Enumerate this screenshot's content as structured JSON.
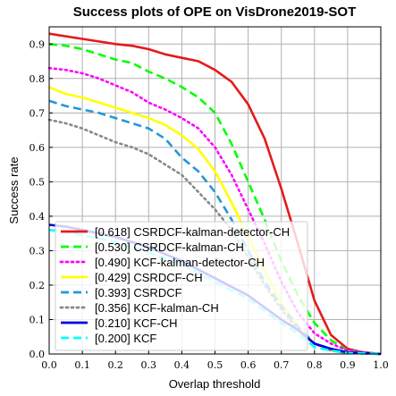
{
  "chart_data": {
    "type": "line",
    "title": "Success plots of OPE on VisDrone2019-SOT",
    "xlabel": "Overlap threshold",
    "ylabel": "Success rate",
    "xlim": [
      0,
      1
    ],
    "ylim": [
      0,
      0.95
    ],
    "xticks": [
      "0.0",
      "0.1",
      "0.2",
      "0.3",
      "0.4",
      "0.5",
      "0.6",
      "0.7",
      "0.8",
      "0.9",
      "1.0"
    ],
    "yticks": [
      "0.0",
      "0.1",
      "0.2",
      "0.3",
      "0.4",
      "0.5",
      "0.6",
      "0.7",
      "0.8",
      "0.9"
    ],
    "grid": true,
    "legend_position": "lower-left",
    "series": [
      {
        "name": "[0.618] CSRDCF-kalman-detector-CH",
        "color": "#e41a1c",
        "dash": "solid",
        "x": [
          0,
          0.1,
          0.2,
          0.25,
          0.3,
          0.35,
          0.4,
          0.45,
          0.5,
          0.55,
          0.6,
          0.65,
          0.7,
          0.75,
          0.8,
          0.85,
          0.9,
          0.95,
          1.0
        ],
        "y": [
          0.93,
          0.915,
          0.9,
          0.895,
          0.885,
          0.87,
          0.86,
          0.85,
          0.825,
          0.79,
          0.725,
          0.625,
          0.48,
          0.32,
          0.155,
          0.055,
          0.015,
          0.004,
          0.0
        ]
      },
      {
        "name": "[0.530] CSRDCF-kalman-CH",
        "color": "#00ff00",
        "dash": "dashed",
        "x": [
          0,
          0.05,
          0.1,
          0.15,
          0.2,
          0.25,
          0.3,
          0.35,
          0.4,
          0.45,
          0.5,
          0.55,
          0.6,
          0.65,
          0.7,
          0.75,
          0.8,
          0.85,
          0.9,
          1.0
        ],
        "y": [
          0.9,
          0.895,
          0.885,
          0.87,
          0.855,
          0.845,
          0.82,
          0.8,
          0.775,
          0.745,
          0.7,
          0.61,
          0.5,
          0.39,
          0.27,
          0.17,
          0.09,
          0.04,
          0.01,
          0.0
        ]
      },
      {
        "name": "[0.490] KCF-kalman-detector-CH",
        "color": "#ff00ff",
        "dash": "dotted",
        "x": [
          0,
          0.05,
          0.1,
          0.15,
          0.2,
          0.25,
          0.3,
          0.35,
          0.4,
          0.45,
          0.5,
          0.55,
          0.6,
          0.65,
          0.7,
          0.75,
          0.8,
          0.85,
          0.9,
          1.0
        ],
        "y": [
          0.83,
          0.825,
          0.815,
          0.8,
          0.78,
          0.76,
          0.73,
          0.71,
          0.685,
          0.655,
          0.6,
          0.52,
          0.42,
          0.32,
          0.21,
          0.12,
          0.06,
          0.03,
          0.01,
          0.0
        ]
      },
      {
        "name": "[0.429] CSRDCF-CH",
        "color": "#ffff00",
        "dash": "solid",
        "x": [
          0,
          0.05,
          0.1,
          0.15,
          0.2,
          0.25,
          0.3,
          0.35,
          0.4,
          0.45,
          0.5,
          0.55,
          0.6,
          0.65,
          0.7,
          0.75,
          0.8,
          0.85,
          0.9,
          1.0
        ],
        "y": [
          0.775,
          0.755,
          0.745,
          0.73,
          0.715,
          0.7,
          0.685,
          0.665,
          0.635,
          0.595,
          0.53,
          0.44,
          0.34,
          0.24,
          0.15,
          0.08,
          0.03,
          0.01,
          0.003,
          0.0
        ]
      },
      {
        "name": "[0.393] CSRDCF",
        "color": "#1f9ad6",
        "dash": "dashed",
        "x": [
          0,
          0.05,
          0.1,
          0.15,
          0.2,
          0.25,
          0.3,
          0.35,
          0.4,
          0.45,
          0.5,
          0.55,
          0.6,
          0.65,
          0.7,
          0.75,
          0.8,
          0.85,
          0.9,
          1.0
        ],
        "y": [
          0.735,
          0.72,
          0.71,
          0.7,
          0.685,
          0.67,
          0.655,
          0.625,
          0.57,
          0.53,
          0.47,
          0.39,
          0.3,
          0.21,
          0.14,
          0.08,
          0.03,
          0.01,
          0.003,
          0.0
        ]
      },
      {
        "name": "[0.356] KCF-kalman-CH",
        "color": "#888888",
        "dash": "dotted",
        "x": [
          0,
          0.05,
          0.1,
          0.15,
          0.2,
          0.25,
          0.3,
          0.35,
          0.4,
          0.45,
          0.5,
          0.55,
          0.6,
          0.65,
          0.7,
          0.75,
          0.8,
          0.85,
          0.9,
          1.0
        ],
        "y": [
          0.68,
          0.67,
          0.655,
          0.635,
          0.615,
          0.6,
          0.58,
          0.55,
          0.52,
          0.47,
          0.42,
          0.36,
          0.28,
          0.2,
          0.13,
          0.07,
          0.03,
          0.01,
          0.003,
          0.0
        ]
      },
      {
        "name": "[0.210] KCF-CH",
        "color": "#0000dd",
        "dash": "solid",
        "x": [
          0,
          0.05,
          0.1,
          0.15,
          0.2,
          0.3,
          0.4,
          0.5,
          0.6,
          0.7,
          0.75,
          0.8,
          0.85,
          0.9,
          1.0
        ],
        "y": [
          0.375,
          0.37,
          0.36,
          0.35,
          0.34,
          0.31,
          0.27,
          0.22,
          0.17,
          0.1,
          0.07,
          0.03,
          0.015,
          0.005,
          0.0
        ]
      },
      {
        "name": "[0.200] KCF",
        "color": "#00ffff",
        "dash": "dashed",
        "x": [
          0,
          0.05,
          0.1,
          0.15,
          0.2,
          0.3,
          0.4,
          0.5,
          0.6,
          0.7,
          0.75,
          0.8,
          0.85,
          0.9,
          1.0
        ],
        "y": [
          0.36,
          0.355,
          0.345,
          0.335,
          0.325,
          0.295,
          0.26,
          0.21,
          0.16,
          0.09,
          0.06,
          0.02,
          0.01,
          0.003,
          0.0
        ]
      }
    ]
  }
}
